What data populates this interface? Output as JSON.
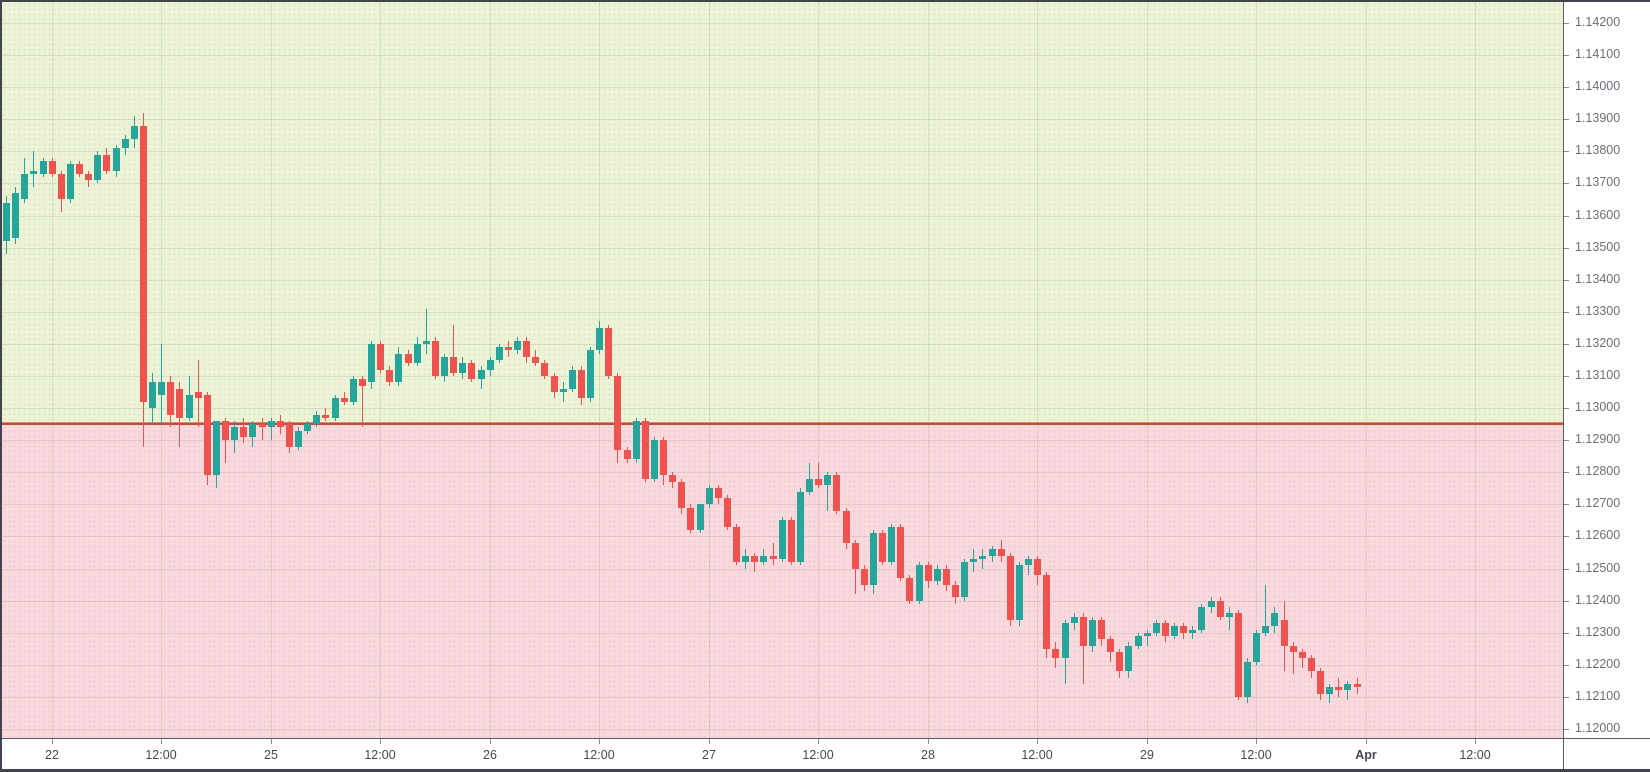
{
  "chart_data": {
    "type": "candlestick",
    "title": "",
    "legend": [],
    "colors": {
      "up_candle": "#26a69a",
      "down_candle": "#ef5350",
      "profit_zone_bg": "#ecf3d7",
      "loss_zone_bg": "#f8d9dd",
      "boundary_line": "#bf4c40",
      "grid": "rgba(110,125,95,0.16)",
      "price_label_text": "#6d707a",
      "time_label_text": "#45484f"
    },
    "zones": {
      "boundary_price": 1.1295,
      "upper_zone_name": "profit-zone",
      "lower_zone_name": "loss-zone"
    },
    "y_axis": {
      "max": 1.142,
      "min": 1.12,
      "tick_step": 0.001,
      "labels": [
        "1.14200",
        "1.14100",
        "1.14000",
        "1.13900",
        "1.13800",
        "1.13700",
        "1.13600",
        "1.13500",
        "1.13400",
        "1.13300",
        "1.13200",
        "1.13100",
        "1.13000",
        "1.12900",
        "1.12800",
        "1.12700",
        "1.12600",
        "1.12500",
        "1.12400",
        "1.12300",
        "1.12200",
        "1.12100",
        "1.12000"
      ]
    },
    "x_axis": {
      "ticks": [
        {
          "index": 5,
          "label": "22",
          "bold": false
        },
        {
          "index": 17,
          "label": "12:00",
          "bold": false
        },
        {
          "index": 29,
          "label": "25",
          "bold": false
        },
        {
          "index": 41,
          "label": "12:00",
          "bold": false
        },
        {
          "index": 53,
          "label": "26",
          "bold": false
        },
        {
          "index": 65,
          "label": "12:00",
          "bold": false
        },
        {
          "index": 77,
          "label": "27",
          "bold": false
        },
        {
          "index": 89,
          "label": "12:00",
          "bold": false
        },
        {
          "index": 101,
          "label": "28",
          "bold": false
        },
        {
          "index": 113,
          "label": "12:00",
          "bold": false
        },
        {
          "index": 125,
          "label": "29",
          "bold": false
        },
        {
          "index": 137,
          "label": "12:00",
          "bold": false
        },
        {
          "index": 149,
          "label": "Apr",
          "bold": true
        },
        {
          "index": 161,
          "label": "12:00",
          "bold": false
        }
      ]
    },
    "candles": [
      [
        1.1352,
        1.1366,
        1.1348,
        1.1364
      ],
      [
        1.1353,
        1.1369,
        1.1351,
        1.1367
      ],
      [
        1.1365,
        1.1378,
        1.1364,
        1.1373
      ],
      [
        1.1373,
        1.138,
        1.1369,
        1.1374
      ],
      [
        1.1373,
        1.1378,
        1.1372,
        1.1377
      ],
      [
        1.1377,
        1.1378,
        1.1372,
        1.1373
      ],
      [
        1.1373,
        1.1374,
        1.1361,
        1.1365
      ],
      [
        1.1365,
        1.1377,
        1.1364,
        1.1376
      ],
      [
        1.1376,
        1.1377,
        1.1372,
        1.1373
      ],
      [
        1.1373,
        1.1374,
        1.1369,
        1.1371
      ],
      [
        1.1371,
        1.138,
        1.137,
        1.1379
      ],
      [
        1.1379,
        1.1381,
        1.1373,
        1.1374
      ],
      [
        1.1374,
        1.1382,
        1.1372,
        1.1381
      ],
      [
        1.1381,
        1.1385,
        1.1379,
        1.1384
      ],
      [
        1.1384,
        1.1391,
        1.1381,
        1.1388
      ],
      [
        1.1388,
        1.1392,
        1.1288,
        1.1302
      ],
      [
        1.13,
        1.1311,
        1.1295,
        1.1308
      ],
      [
        1.1304,
        1.132,
        1.1295,
        1.1308
      ],
      [
        1.1308,
        1.131,
        1.1294,
        1.1298
      ],
      [
        1.1306,
        1.1308,
        1.1288,
        1.1297
      ],
      [
        1.1297,
        1.131,
        1.1296,
        1.1304
      ],
      [
        1.1305,
        1.1315,
        1.1294,
        1.1303
      ],
      [
        1.1304,
        1.1305,
        1.1276,
        1.1279
      ],
      [
        1.1279,
        1.1296,
        1.1275,
        1.1296
      ],
      [
        1.1296,
        1.1297,
        1.1283,
        1.129
      ],
      [
        1.129,
        1.1296,
        1.1286,
        1.1294
      ],
      [
        1.1294,
        1.1297,
        1.1289,
        1.1291
      ],
      [
        1.1291,
        1.1296,
        1.1288,
        1.1295
      ],
      [
        1.1295,
        1.1297,
        1.129,
        1.1294
      ],
      [
        1.1294,
        1.1297,
        1.129,
        1.1296
      ],
      [
        1.1296,
        1.1298,
        1.1292,
        1.1294
      ],
      [
        1.1295,
        1.1296,
        1.1286,
        1.1288
      ],
      [
        1.1288,
        1.1294,
        1.1287,
        1.1293
      ],
      [
        1.1293,
        1.1296,
        1.1292,
        1.1295
      ],
      [
        1.1295,
        1.1299,
        1.1294,
        1.1298
      ],
      [
        1.1298,
        1.13,
        1.1296,
        1.1297
      ],
      [
        1.1297,
        1.1304,
        1.1296,
        1.1303
      ],
      [
        1.1303,
        1.1305,
        1.1301,
        1.1302
      ],
      [
        1.1302,
        1.131,
        1.1301,
        1.1309
      ],
      [
        1.1309,
        1.131,
        1.1294,
        1.1307
      ],
      [
        1.1308,
        1.1321,
        1.1306,
        1.132
      ],
      [
        1.132,
        1.1321,
        1.1311,
        1.1312
      ],
      [
        1.1312,
        1.1313,
        1.1307,
        1.1308
      ],
      [
        1.1308,
        1.1319,
        1.1307,
        1.1317
      ],
      [
        1.1317,
        1.1318,
        1.1313,
        1.1314
      ],
      [
        1.1314,
        1.1322,
        1.1313,
        1.132
      ],
      [
        1.132,
        1.1331,
        1.1317,
        1.1321
      ],
      [
        1.1321,
        1.1322,
        1.1309,
        1.131
      ],
      [
        1.131,
        1.1317,
        1.1308,
        1.1316
      ],
      [
        1.1316,
        1.1326,
        1.131,
        1.1311
      ],
      [
        1.1311,
        1.1316,
        1.1309,
        1.1314
      ],
      [
        1.1314,
        1.1315,
        1.1308,
        1.1309
      ],
      [
        1.1309,
        1.1313,
        1.1306,
        1.1312
      ],
      [
        1.1312,
        1.1316,
        1.131,
        1.1315
      ],
      [
        1.1315,
        1.132,
        1.1314,
        1.1319
      ],
      [
        1.1319,
        1.1321,
        1.1316,
        1.1318
      ],
      [
        1.1318,
        1.1322,
        1.1317,
        1.1321
      ],
      [
        1.1321,
        1.1322,
        1.1314,
        1.1316
      ],
      [
        1.1316,
        1.1318,
        1.1313,
        1.1314
      ],
      [
        1.1314,
        1.1315,
        1.1309,
        1.131
      ],
      [
        1.131,
        1.1311,
        1.1303,
        1.1305
      ],
      [
        1.1305,
        1.1308,
        1.1302,
        1.1306
      ],
      [
        1.1306,
        1.1313,
        1.1305,
        1.1312
      ],
      [
        1.1312,
        1.1313,
        1.1301,
        1.1303
      ],
      [
        1.1303,
        1.1319,
        1.1302,
        1.1318
      ],
      [
        1.1318,
        1.1327,
        1.1317,
        1.1325
      ],
      [
        1.1325,
        1.1326,
        1.1309,
        1.131
      ],
      [
        1.131,
        1.1311,
        1.1283,
        1.1287
      ],
      [
        1.1287,
        1.1288,
        1.1283,
        1.1284
      ],
      [
        1.1284,
        1.1297,
        1.1283,
        1.1296
      ],
      [
        1.1296,
        1.1297,
        1.1277,
        1.1278
      ],
      [
        1.1278,
        1.1291,
        1.1277,
        1.129
      ],
      [
        1.129,
        1.1291,
        1.1276,
        1.1279
      ],
      [
        1.1279,
        1.128,
        1.1275,
        1.1277
      ],
      [
        1.1277,
        1.1278,
        1.1267,
        1.1269
      ],
      [
        1.1269,
        1.127,
        1.1261,
        1.1262
      ],
      [
        1.1262,
        1.127,
        1.1261,
        1.127
      ],
      [
        1.127,
        1.1276,
        1.1269,
        1.1275
      ],
      [
        1.1275,
        1.1276,
        1.127,
        1.1272
      ],
      [
        1.1272,
        1.1273,
        1.1262,
        1.1263
      ],
      [
        1.1263,
        1.1264,
        1.1251,
        1.1252
      ],
      [
        1.1252,
        1.1256,
        1.125,
        1.1254
      ],
      [
        1.1254,
        1.1255,
        1.1249,
        1.1252
      ],
      [
        1.1252,
        1.1256,
        1.1251,
        1.1254
      ],
      [
        1.1254,
        1.1258,
        1.1251,
        1.1253
      ],
      [
        1.1253,
        1.1266,
        1.1252,
        1.1265
      ],
      [
        1.1265,
        1.1266,
        1.1251,
        1.1252
      ],
      [
        1.1252,
        1.1275,
        1.1251,
        1.1274
      ],
      [
        1.1274,
        1.1283,
        1.1273,
        1.1278
      ],
      [
        1.1278,
        1.1283,
        1.1275,
        1.1276
      ],
      [
        1.1276,
        1.128,
        1.1268,
        1.1279
      ],
      [
        1.1279,
        1.128,
        1.1267,
        1.1268
      ],
      [
        1.1268,
        1.1269,
        1.1256,
        1.1258
      ],
      [
        1.1258,
        1.1259,
        1.1242,
        1.125
      ],
      [
        1.125,
        1.1251,
        1.1243,
        1.1245
      ],
      [
        1.1245,
        1.1262,
        1.1242,
        1.1261
      ],
      [
        1.1261,
        1.1262,
        1.1251,
        1.1252
      ],
      [
        1.1252,
        1.1264,
        1.1251,
        1.1263
      ],
      [
        1.1263,
        1.1264,
        1.1246,
        1.1247
      ],
      [
        1.1247,
        1.1248,
        1.1239,
        1.124
      ],
      [
        1.124,
        1.1252,
        1.1239,
        1.1251
      ],
      [
        1.1251,
        1.1252,
        1.1244,
        1.1246
      ],
      [
        1.1246,
        1.1251,
        1.1245,
        1.125
      ],
      [
        1.125,
        1.1251,
        1.1243,
        1.1245
      ],
      [
        1.1245,
        1.1246,
        1.1239,
        1.1241
      ],
      [
        1.1241,
        1.1253,
        1.124,
        1.1252
      ],
      [
        1.1252,
        1.1256,
        1.1249,
        1.1253
      ],
      [
        1.1253,
        1.1256,
        1.125,
        1.1254
      ],
      [
        1.1254,
        1.1257,
        1.1252,
        1.1256
      ],
      [
        1.1256,
        1.1259,
        1.1252,
        1.1254
      ],
      [
        1.1254,
        1.1255,
        1.1232,
        1.1234
      ],
      [
        1.1234,
        1.1252,
        1.1232,
        1.1251
      ],
      [
        1.1251,
        1.1254,
        1.1248,
        1.1253
      ],
      [
        1.1253,
        1.1254,
        1.1245,
        1.1248
      ],
      [
        1.1248,
        1.1249,
        1.1222,
        1.1225
      ],
      [
        1.1225,
        1.1227,
        1.1219,
        1.1222
      ],
      [
        1.1222,
        1.1234,
        1.1214,
        1.1233
      ],
      [
        1.1233,
        1.1236,
        1.1231,
        1.1235
      ],
      [
        1.1235,
        1.1236,
        1.1214,
        1.1226
      ],
      [
        1.1226,
        1.1235,
        1.1224,
        1.1234
      ],
      [
        1.1234,
        1.1235,
        1.1226,
        1.1228
      ],
      [
        1.1228,
        1.1229,
        1.1221,
        1.1224
      ],
      [
        1.1224,
        1.1225,
        1.1216,
        1.1218
      ],
      [
        1.1218,
        1.1227,
        1.1216,
        1.1226
      ],
      [
        1.1226,
        1.123,
        1.1225,
        1.1229
      ],
      [
        1.1229,
        1.1231,
        1.1226,
        1.123
      ],
      [
        1.123,
        1.1234,
        1.1229,
        1.1233
      ],
      [
        1.1233,
        1.1234,
        1.1227,
        1.1229
      ],
      [
        1.1229,
        1.1233,
        1.1228,
        1.1232
      ],
      [
        1.1232,
        1.1233,
        1.1228,
        1.123
      ],
      [
        1.123,
        1.1232,
        1.1228,
        1.1231
      ],
      [
        1.1231,
        1.1239,
        1.123,
        1.1238
      ],
      [
        1.1238,
        1.1241,
        1.1236,
        1.124
      ],
      [
        1.124,
        1.1241,
        1.1234,
        1.1235
      ],
      [
        1.1235,
        1.1238,
        1.1231,
        1.1236
      ],
      [
        1.1236,
        1.1237,
        1.1209,
        1.121
      ],
      [
        1.121,
        1.1222,
        1.1208,
        1.1221
      ],
      [
        1.1221,
        1.1231,
        1.122,
        1.123
      ],
      [
        1.123,
        1.1245,
        1.1229,
        1.1232
      ],
      [
        1.1232,
        1.1238,
        1.123,
        1.1236
      ],
      [
        1.1234,
        1.124,
        1.1218,
        1.1226
      ],
      [
        1.1226,
        1.1227,
        1.1217,
        1.1224
      ],
      [
        1.1224,
        1.1225,
        1.1219,
        1.1222
      ],
      [
        1.1222,
        1.1223,
        1.1216,
        1.1218
      ],
      [
        1.1218,
        1.1219,
        1.1209,
        1.1211
      ],
      [
        1.1211,
        1.1214,
        1.1208,
        1.1213
      ],
      [
        1.1213,
        1.1216,
        1.121,
        1.1212
      ],
      [
        1.1212,
        1.1215,
        1.1209,
        1.1214
      ],
      [
        1.1214,
        1.1216,
        1.1211,
        1.1213
      ]
    ]
  }
}
